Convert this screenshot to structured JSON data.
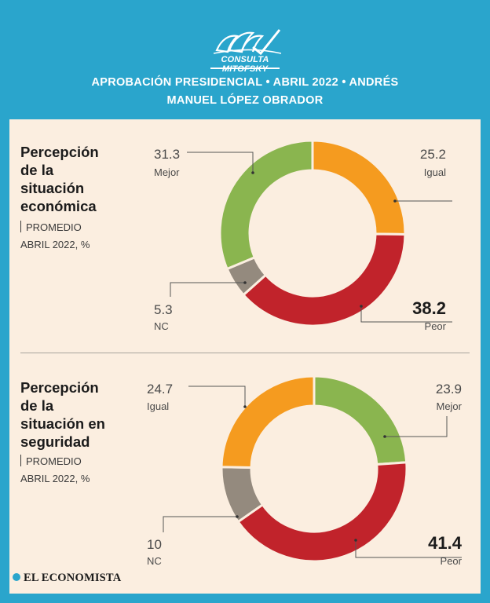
{
  "header": {
    "logo_text": "CONSULTA MITOFSKY",
    "title_line1": "APROBACIÓN PRESIDENCIAL • ABRIL 2022 • ANDRÉS",
    "title_line2": "MANUEL LÓPEZ OBRADOR"
  },
  "colors": {
    "background": "#2aa5cc",
    "panel": "#fbeee0",
    "mejor": "#8ab54f",
    "igual": "#f59b1f",
    "peor": "#c1232b",
    "nc": "#948a7e"
  },
  "sections": [
    {
      "title_lines": [
        "Percepción",
        "de la",
        "situación",
        "económica"
      ],
      "subtitle_1": "PROMEDIO",
      "subtitle_2": "ABRIL 2022, %"
    },
    {
      "title_lines": [
        "Percepción",
        "de la",
        "situación en",
        "seguridad"
      ],
      "subtitle_1": "PROMEDIO",
      "subtitle_2": "ABRIL 2022, %"
    }
  ],
  "chart_data": [
    {
      "type": "pie",
      "title": "Percepción de la situación económica",
      "subtitle": "PROMEDIO ABRIL 2022, %",
      "slices": [
        {
          "name": "Igual",
          "value": 25.2,
          "value_label": "25.2",
          "color": "#f59b1f"
        },
        {
          "name": "Peor",
          "value": 38.2,
          "value_label": "38.2",
          "color": "#c1232b"
        },
        {
          "name": "NC",
          "value": 5.3,
          "value_label": "5.3",
          "color": "#948a7e"
        },
        {
          "name": "Mejor",
          "value": 31.3,
          "value_label": "31.3",
          "color": "#8ab54f"
        }
      ]
    },
    {
      "type": "pie",
      "title": "Percepción de la situación en seguridad",
      "subtitle": "PROMEDIO ABRIL 2022, %",
      "slices": [
        {
          "name": "Mejor",
          "value": 23.9,
          "value_label": "23.9",
          "color": "#8ab54f"
        },
        {
          "name": "Peor",
          "value": 41.4,
          "value_label": "41.4",
          "color": "#c1232b"
        },
        {
          "name": "NC",
          "value": 10,
          "value_label": "10",
          "color": "#948a7e"
        },
        {
          "name": "Igual",
          "value": 24.7,
          "value_label": "24.7",
          "color": "#f59b1f"
        }
      ]
    }
  ],
  "footer": {
    "brand": "EL ECONOMISTA"
  }
}
